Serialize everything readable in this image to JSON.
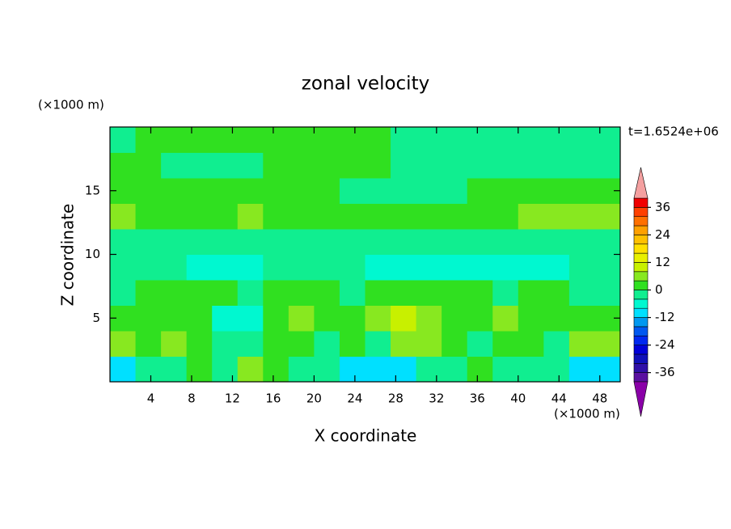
{
  "chart_data": {
    "type": "contour",
    "title": "zonal velocity",
    "y_units": "(×1000 m)",
    "x_units": "(×1000 m)",
    "annotation": "t=1.6524e+06",
    "x_label": "X coordinate",
    "y_label": "Z coordinate",
    "xlim": [
      0,
      50
    ],
    "ylim": [
      0,
      20
    ],
    "xticks": [
      4,
      8,
      12,
      16,
      20,
      24,
      28,
      32,
      36,
      40,
      44,
      48
    ],
    "yticks": [
      5,
      10,
      15
    ],
    "x": [
      1.25,
      3.75,
      6.25,
      8.75,
      11.25,
      13.75,
      16.25,
      18.75,
      21.25,
      23.75,
      26.25,
      28.75,
      31.25,
      33.75,
      36.25,
      38.75,
      41.25,
      43.75,
      46.25,
      48.75
    ],
    "y": [
      1,
      3,
      5,
      7,
      9,
      11,
      13,
      15,
      17,
      19
    ],
    "z": [
      [
        -10,
        -2,
        -2,
        2,
        -2,
        6,
        2,
        -2,
        -2,
        -10,
        -10,
        -10,
        -2,
        -2,
        2,
        -2,
        -2,
        -2,
        -10,
        -10
      ],
      [
        6,
        2,
        6,
        2,
        -2,
        -2,
        2,
        2,
        -2,
        2,
        -2,
        6,
        6,
        2,
        -2,
        2,
        2,
        -2,
        6,
        6
      ],
      [
        2,
        2,
        2,
        2,
        -6,
        -6,
        2,
        6,
        2,
        2,
        6,
        10,
        6,
        2,
        2,
        6,
        2,
        2,
        2,
        2
      ],
      [
        -2,
        2,
        2,
        2,
        2,
        -2,
        2,
        2,
        2,
        -2,
        2,
        2,
        2,
        2,
        2,
        -2,
        2,
        2,
        -2,
        -2
      ],
      [
        -2,
        -2,
        -2,
        -6,
        -6,
        -6,
        -2,
        -2,
        -2,
        -2,
        -6,
        -6,
        -6,
        -6,
        -6,
        -6,
        -6,
        -6,
        -2,
        -2
      ],
      [
        -2,
        -2,
        -2,
        -2,
        -2,
        -2,
        -2,
        -2,
        -2,
        -2,
        -2,
        -2,
        -2,
        -2,
        -2,
        -2,
        -2,
        -2,
        -2,
        -2
      ],
      [
        6,
        2,
        2,
        2,
        2,
        6,
        2,
        2,
        2,
        2,
        2,
        2,
        2,
        2,
        2,
        2,
        6,
        6,
        6,
        6
      ],
      [
        2,
        2,
        2,
        2,
        2,
        2,
        2,
        2,
        2,
        -2,
        -2,
        -2,
        -2,
        -2,
        2,
        2,
        2,
        2,
        2,
        2
      ],
      [
        2,
        2,
        -2,
        -2,
        -2,
        -2,
        2,
        2,
        2,
        2,
        2,
        -2,
        -2,
        -2,
        -2,
        -2,
        -2,
        -2,
        -2,
        -2
      ],
      [
        -2,
        2,
        2,
        2,
        2,
        2,
        2,
        2,
        2,
        2,
        2,
        -2,
        -2,
        -2,
        -2,
        -2,
        -2,
        -2,
        -2,
        -2
      ]
    ],
    "levels": [
      -40,
      -36,
      -32,
      -28,
      -24,
      -20,
      -16,
      -12,
      -8,
      -4,
      0,
      4,
      8,
      12,
      16,
      20,
      24,
      28,
      32,
      36,
      40
    ],
    "colors": [
      "#8a00a8",
      "#5a10a0",
      "#3010a8",
      "#1010b8",
      "#0000d8",
      "#0028f0",
      "#0058f0",
      "#0098f0",
      "#00e0ff",
      "#00f8d0",
      "#10ee90",
      "#30e020",
      "#88e820",
      "#c8f000",
      "#e8f000",
      "#ffe000",
      "#ffc000",
      "#ffa000",
      "#ff7000",
      "#ff4000",
      "#f00000",
      "#f4a0a0"
    ],
    "colorbar_ticks": [
      -36,
      -24,
      -12,
      0,
      12,
      24,
      36
    ]
  }
}
